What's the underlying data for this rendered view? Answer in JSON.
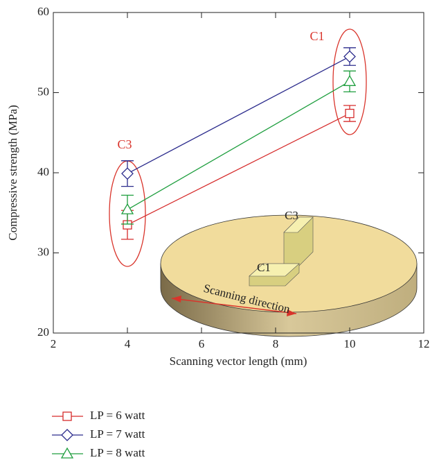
{
  "chart_data": {
    "type": "line",
    "x_label": "Scanning vector length (mm)",
    "y_label": "Compressive strength (MPa)",
    "xlim": [
      2,
      12
    ],
    "xticks": [
      2,
      4,
      6,
      8,
      10,
      12
    ],
    "ylim": [
      20,
      60
    ],
    "yticks": [
      20,
      30,
      40,
      50,
      60
    ],
    "series": [
      {
        "name": "LP = 6 watt",
        "color": "#d62b2b",
        "marker": "square",
        "x": [
          4,
          10
        ],
        "values": [
          33.5,
          47.4
        ],
        "errors": [
          1.8,
          1.0
        ]
      },
      {
        "name": "LP = 7 watt",
        "color": "#2b2b8c",
        "marker": "diamond",
        "x": [
          4,
          10
        ],
        "values": [
          39.9,
          54.5
        ],
        "errors": [
          1.6,
          1.1
        ]
      },
      {
        "name": "LP = 8 watt",
        "color": "#1e9e3e",
        "marker": "triangle",
        "x": [
          4,
          10
        ],
        "values": [
          35.4,
          51.4
        ],
        "errors": [
          1.8,
          1.3
        ]
      }
    ],
    "annotations": [
      "C3",
      "C1",
      "C3",
      "C1",
      "Scanning direction"
    ]
  }
}
